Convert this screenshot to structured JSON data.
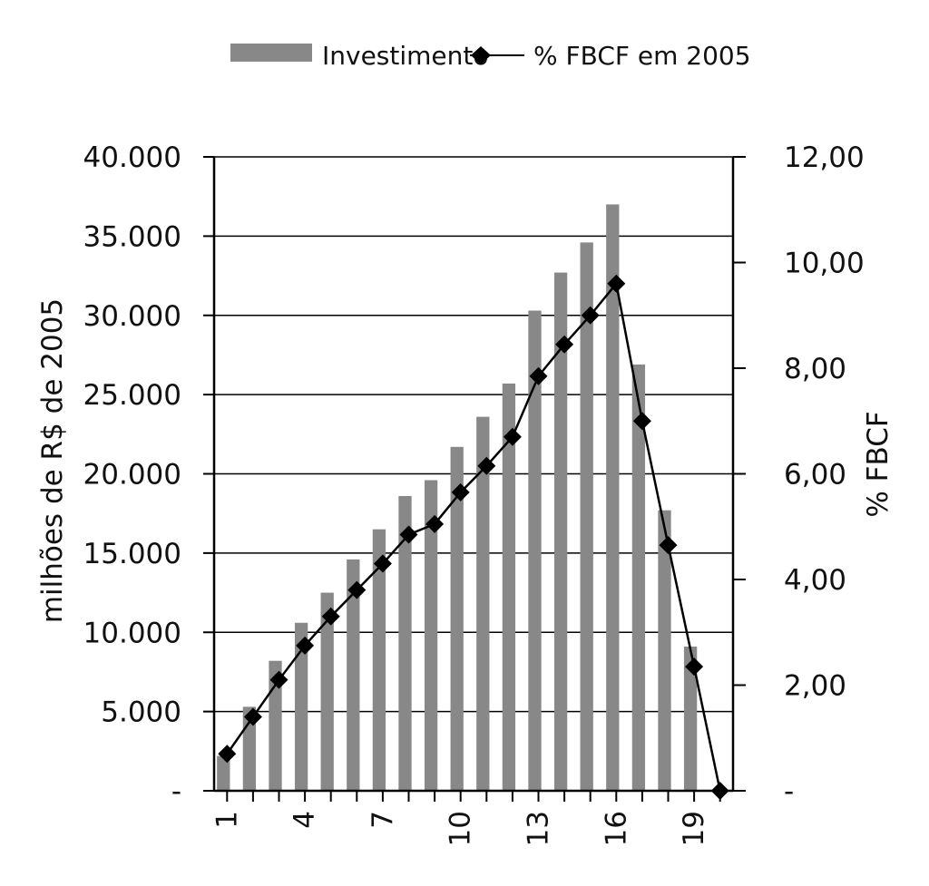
{
  "chart_data": {
    "type": "bar",
    "legend": {
      "position": "top-center",
      "items": [
        {
          "label": "Investimento",
          "symbol": "bar"
        },
        {
          "label": "% FBCF em 2005",
          "symbol": "line-diamond"
        }
      ]
    },
    "x": [
      1,
      2,
      3,
      4,
      5,
      6,
      7,
      8,
      9,
      10,
      11,
      12,
      13,
      14,
      15,
      16,
      17,
      18,
      19,
      20
    ],
    "x_tick_labels": [
      "1",
      "4",
      "7",
      "10",
      "13",
      "16",
      "19"
    ],
    "x_tick_values": [
      1,
      4,
      7,
      10,
      13,
      16,
      19
    ],
    "left_axis": {
      "label": "milhões de R$ de 2005",
      "ylim": [
        0,
        40000
      ],
      "ticks": [
        0,
        5000,
        10000,
        15000,
        20000,
        25000,
        30000,
        35000,
        40000
      ],
      "tick_labels": [
        "-",
        "5.000",
        "10.000",
        "15.000",
        "20.000",
        "25.000",
        "30.000",
        "35.000",
        "40.000"
      ]
    },
    "right_axis": {
      "label": "% FBCF",
      "ylim": [
        0,
        12
      ],
      "ticks": [
        0,
        2,
        4,
        6,
        8,
        10,
        12
      ],
      "tick_labels": [
        "-",
        "2,00",
        "4,00",
        "6,00",
        "8,00",
        "10,00",
        "12,00"
      ]
    },
    "series": [
      {
        "name": "Investimento",
        "type": "bar",
        "axis": "left",
        "color": "#888888",
        "values": [
          2200,
          5300,
          8200,
          10600,
          12500,
          14600,
          16500,
          18600,
          19600,
          21700,
          23600,
          25700,
          30300,
          32700,
          34600,
          37000,
          26900,
          17700,
          9100,
          0
        ]
      },
      {
        "name": "% FBCF em 2005",
        "type": "line",
        "axis": "right",
        "color": "#000000",
        "marker": "diamond",
        "values": [
          0.7,
          1.4,
          2.1,
          2.75,
          3.3,
          3.8,
          4.3,
          4.85,
          5.05,
          5.65,
          6.15,
          6.7,
          7.85,
          8.45,
          9.0,
          9.6,
          7.0,
          4.65,
          2.35,
          0
        ]
      }
    ],
    "grid": "horizontal"
  }
}
